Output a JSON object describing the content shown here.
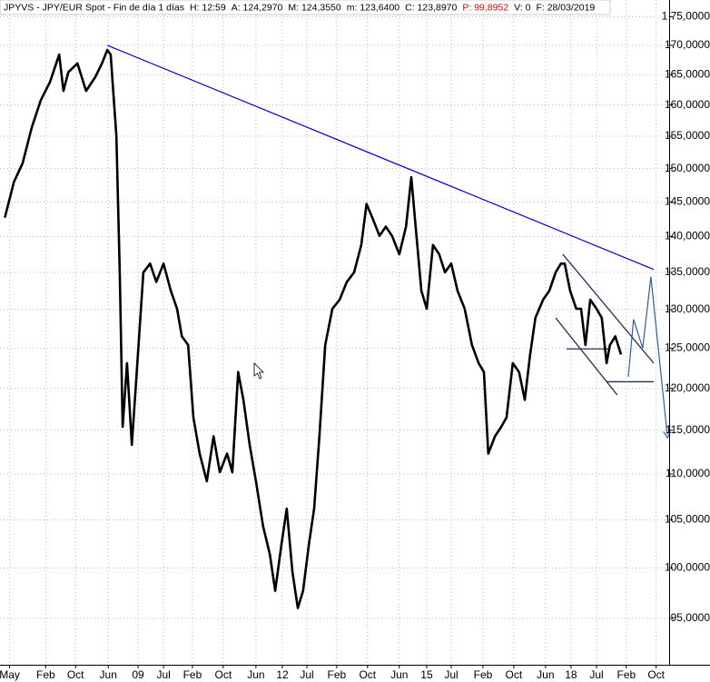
{
  "chart_data": {
    "type": "line",
    "title": "JPYVS - JPY/EUR Spot - Fin de día 1 días",
    "stats": [
      "H: 12:59",
      "A: 124,2970",
      "M: 124,3550",
      "m: 123,6400",
      "C: 123,8970",
      "P: 99,8952",
      "V: 0",
      "F: 28/03/2019"
    ],
    "stats_colors": [
      "#000000",
      "#000000",
      "#000000",
      "#000000",
      "#000000",
      "#e00000",
      "#000000",
      "#000000"
    ],
    "color": "#000000",
    "x": [
      2006.23,
      2006.42,
      2006.6,
      2006.79,
      2006.98,
      2007.17,
      2007.36,
      2007.45,
      2007.55,
      2007.74,
      2007.92,
      2008.11,
      2008.25,
      2008.36,
      2008.43,
      2008.55,
      2008.62,
      2008.68,
      2008.77,
      2008.87,
      2008.96,
      2009.11,
      2009.25,
      2009.38,
      2009.53,
      2009.68,
      2009.81,
      2009.91,
      2010.04,
      2010.15,
      2010.28,
      2010.43,
      2010.57,
      2010.7,
      2010.85,
      2010.96,
      2011.08,
      2011.19,
      2011.32,
      2011.45,
      2011.6,
      2011.74,
      2011.85,
      2011.98,
      2012.09,
      2012.21,
      2012.32,
      2012.43,
      2012.55,
      2012.66,
      2012.77,
      2012.89,
      2013.04,
      2013.19,
      2013.34,
      2013.49,
      2013.64,
      2013.75,
      2013.87,
      2014.02,
      2014.15,
      2014.28,
      2014.43,
      2014.57,
      2014.68,
      2014.77,
      2014.89,
      2015.0,
      2015.13,
      2015.26,
      2015.38,
      2015.51,
      2015.64,
      2015.79,
      2015.94,
      2016.08,
      2016.19,
      2016.28,
      2016.42,
      2016.55,
      2016.66,
      2016.79,
      2016.92,
      2017.04,
      2017.15,
      2017.26,
      2017.42,
      2017.55,
      2017.68,
      2017.79,
      2017.87,
      2017.98,
      2018.11,
      2018.21,
      2018.3,
      2018.4,
      2018.53,
      2018.64,
      2018.74,
      2018.81,
      2018.92,
      2019.04
    ],
    "values": [
      142.7,
      148.0,
      150.8,
      156.4,
      160.8,
      163.8,
      168.4,
      162.3,
      165.4,
      166.9,
      162.3,
      164.6,
      166.9,
      169.2,
      168.4,
      155.0,
      135.0,
      115.4,
      123.1,
      113.3,
      120.8,
      135.0,
      136.2,
      133.7,
      136.2,
      132.5,
      130.1,
      126.5,
      125.4,
      116.5,
      112.3,
      109.2,
      114.3,
      110.2,
      112.3,
      110.2,
      122.0,
      118.6,
      113.3,
      109.2,
      104.3,
      101.4,
      97.7,
      102.4,
      106.2,
      99.6,
      96.0,
      97.7,
      102.4,
      106.2,
      114.3,
      125.4,
      130.1,
      131.3,
      133.7,
      135.0,
      138.8,
      144.7,
      142.7,
      140.1,
      141.4,
      140.1,
      137.5,
      141.4,
      148.7,
      141.4,
      132.5,
      130.1,
      138.8,
      137.5,
      135.0,
      136.2,
      132.5,
      130.1,
      125.4,
      123.1,
      122.0,
      112.3,
      114.3,
      115.4,
      116.5,
      123.1,
      122.0,
      118.6,
      124.2,
      128.9,
      131.3,
      132.5,
      135.0,
      136.2,
      136.2,
      132.5,
      130.1,
      130.1,
      125.4,
      131.3,
      130.1,
      128.9,
      123.1,
      125.4,
      126.5,
      124.2
    ],
    "trendlines": [
      {
        "color": "#0000cc",
        "x": [
          2008.36,
          2019.72
        ],
        "values": [
          170.0,
          135.4
        ]
      },
      {
        "color": "#1a1a4d",
        "x": [
          2017.83,
          2019.72
        ],
        "values": [
          137.5,
          123.1
        ]
      },
      {
        "color": "#1a1a4d",
        "x": [
          2017.68,
          2018.96
        ],
        "values": [
          128.9,
          119.2
        ]
      },
      {
        "color": "#1a1a4d",
        "x": [
          2017.91,
          2018.79
        ],
        "values": [
          124.9,
          124.9
        ]
      },
      {
        "color": "#1a1a4d",
        "x": [
          2018.74,
          2019.72
        ],
        "values": [
          120.8,
          120.8
        ]
      },
      {
        "color": "#2e5f9e",
        "arrow": true,
        "x": [
          2019.19,
          2019.3,
          2019.49,
          2019.66,
          2020.0
        ],
        "values": [
          121.4,
          128.7,
          125.0,
          134.4,
          114.5
        ]
      }
    ],
    "log_scale": true,
    "grid": true,
    "xlim": [
      2006.13,
      2020.04
    ],
    "ylim": [
      90.8,
      178.0
    ],
    "yticks": [
      {
        "value": 95,
        "label": "95,0000"
      },
      {
        "value": 100,
        "label": "100,0000"
      },
      {
        "value": 105,
        "label": "105,0000"
      },
      {
        "value": 110,
        "label": "110,0000"
      },
      {
        "value": 115,
        "label": "115,0000"
      },
      {
        "value": 120,
        "label": "120,0000"
      },
      {
        "value": 125,
        "label": "125,0000"
      },
      {
        "value": 130,
        "label": "130,0000"
      },
      {
        "value": 135,
        "label": "135,0000"
      },
      {
        "value": 140,
        "label": "140,0000"
      },
      {
        "value": 145,
        "label": "145,0000"
      },
      {
        "value": 150,
        "label": "150,0000"
      },
      {
        "value": 155,
        "label": "155,0000"
      },
      {
        "value": 160,
        "label": "160,0000"
      },
      {
        "value": 165,
        "label": "165,0000"
      },
      {
        "value": 170,
        "label": "170,0000"
      },
      {
        "value": 175,
        "label": "1 75,0000"
      }
    ],
    "xticks": [
      {
        "value": 2006.33,
        "label": "May"
      },
      {
        "value": 2007.08,
        "label": "Feb"
      },
      {
        "value": 2007.7,
        "label": "Oct"
      },
      {
        "value": 2008.38,
        "label": "Jun"
      },
      {
        "value": 2009.0,
        "label": "09"
      },
      {
        "value": 2009.53,
        "label": "Jul"
      },
      {
        "value": 2010.13,
        "label": "Feb"
      },
      {
        "value": 2010.77,
        "label": "Oct"
      },
      {
        "value": 2011.45,
        "label": "Jun"
      },
      {
        "value": 2012.0,
        "label": "12"
      },
      {
        "value": 2012.51,
        "label": "Jul"
      },
      {
        "value": 2013.13,
        "label": "Feb"
      },
      {
        "value": 2013.77,
        "label": "Oct"
      },
      {
        "value": 2014.43,
        "label": "Jun"
      },
      {
        "value": 2015.0,
        "label": "15"
      },
      {
        "value": 2015.51,
        "label": "Jul"
      },
      {
        "value": 2016.17,
        "label": "Feb"
      },
      {
        "value": 2016.81,
        "label": "Oct"
      },
      {
        "value": 2017.47,
        "label": "Jun"
      },
      {
        "value": 2018.0,
        "label": "18"
      },
      {
        "value": 2018.53,
        "label": "Jul"
      },
      {
        "value": 2019.15,
        "label": "Feb"
      },
      {
        "value": 2019.77,
        "label": "Oct"
      }
    ]
  }
}
